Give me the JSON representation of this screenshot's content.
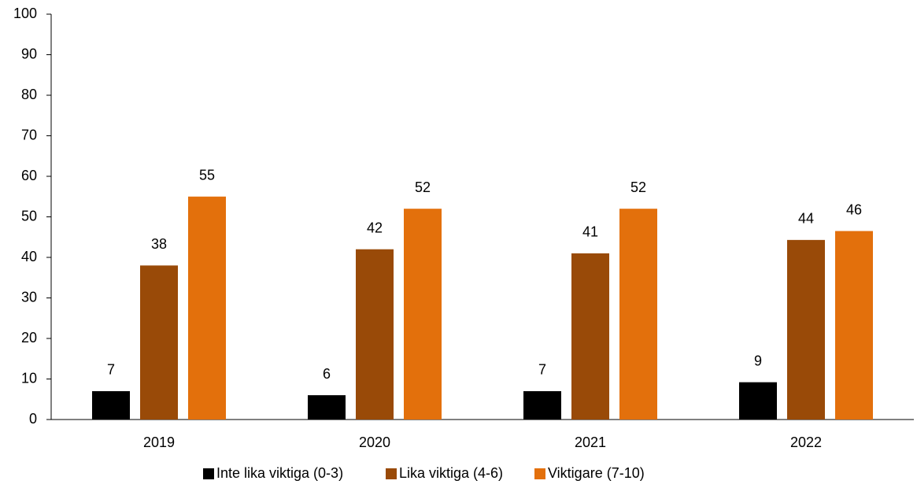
{
  "chart_data": {
    "type": "bar",
    "categories": [
      "2019",
      "2020",
      "2021",
      "2022"
    ],
    "series": [
      {
        "name": "Inte lika viktiga (0-3)",
        "color": "#000000",
        "values": [
          7,
          6,
          7,
          9.2
        ],
        "value_labels": [
          "7",
          "6",
          "7",
          "9"
        ]
      },
      {
        "name": "Lika viktiga (4-6)",
        "color": "#994a08",
        "values": [
          38,
          42,
          41,
          44.3
        ],
        "value_labels": [
          "38",
          "42",
          "41",
          "44"
        ]
      },
      {
        "name": "Viktigare (7-10)",
        "color": "#e3700c",
        "values": [
          55,
          52,
          52,
          46.5
        ],
        "value_labels": [
          "55",
          "52",
          "52",
          "46"
        ]
      }
    ],
    "ylim": [
      0,
      100
    ],
    "yticks": [
      0,
      10,
      20,
      30,
      40,
      50,
      60,
      70,
      80,
      90,
      100
    ],
    "grid": false,
    "legend": "bottom"
  }
}
